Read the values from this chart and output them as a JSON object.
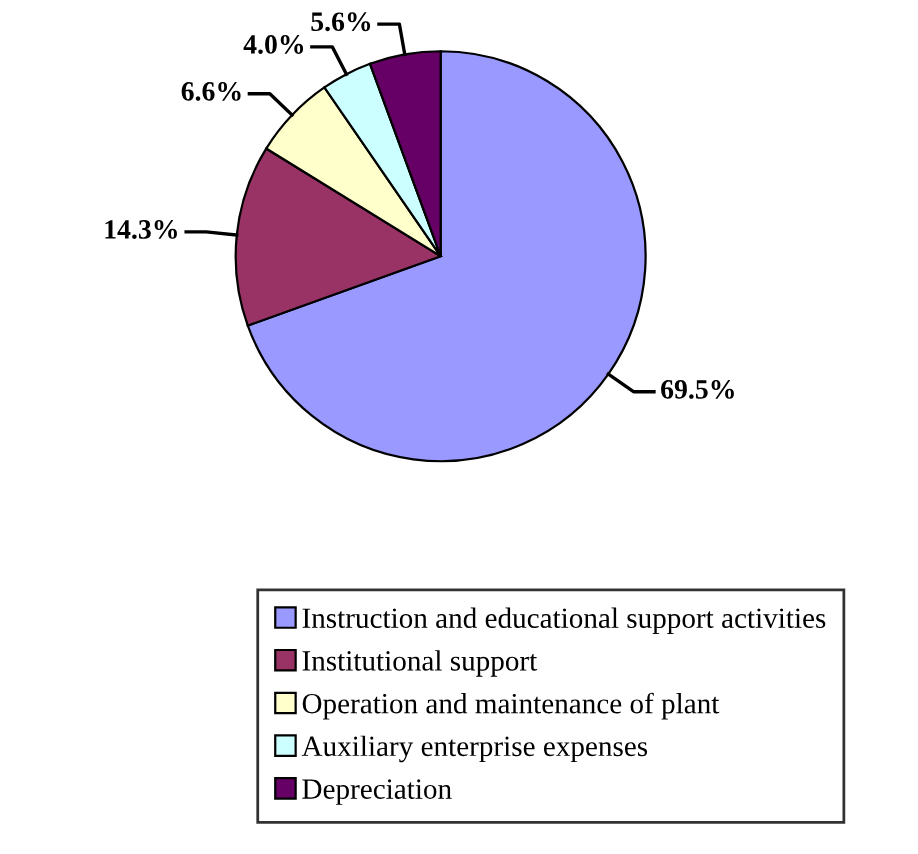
{
  "chart_data": {
    "type": "pie",
    "categories": [
      "Instruction and educational support activities",
      "Institutional support",
      "Operation and maintenance of plant",
      "Auxiliary enterprise expenses",
      "Depreciation"
    ],
    "values": [
      69.5,
      14.3,
      6.6,
      4.0,
      5.6
    ],
    "value_labels": [
      "69.5%",
      "14.3%",
      "6.6%",
      "4.0%",
      "5.6%"
    ],
    "colors": [
      "#9999ff",
      "#993366",
      "#ffffcc",
      "#ccffff",
      "#660066"
    ],
    "legend": "bottom"
  }
}
